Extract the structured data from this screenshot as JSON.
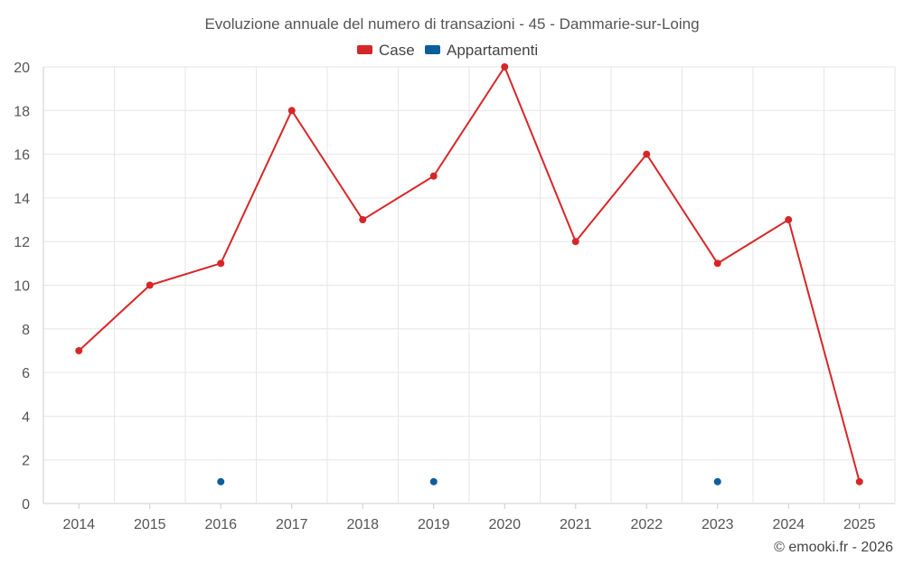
{
  "chart_data": {
    "type": "line",
    "title": "Evoluzione annuale del numero di transazioni - 45 - Dammarie-sur-Loing",
    "categories": [
      "2014",
      "2015",
      "2016",
      "2017",
      "2018",
      "2019",
      "2020",
      "2021",
      "2022",
      "2023",
      "2024",
      "2025"
    ],
    "series": [
      {
        "name": "Case",
        "color": "#d62728",
        "values": [
          7,
          10,
          11,
          18,
          13,
          15,
          20,
          12,
          16,
          11,
          13,
          1
        ],
        "connected": true
      },
      {
        "name": "Appartamenti",
        "color": "#0b5e9a",
        "values": [
          null,
          null,
          1,
          null,
          null,
          1,
          null,
          null,
          null,
          1,
          null,
          null
        ],
        "connected": false
      }
    ],
    "ylim": [
      0,
      20
    ],
    "yticks": [
      0,
      2,
      4,
      6,
      8,
      10,
      12,
      14,
      16,
      18,
      20
    ],
    "xlabel": "",
    "ylabel": "",
    "grid": true,
    "legend_position": "top-center"
  },
  "credit": "© emooki.fr - 2026"
}
